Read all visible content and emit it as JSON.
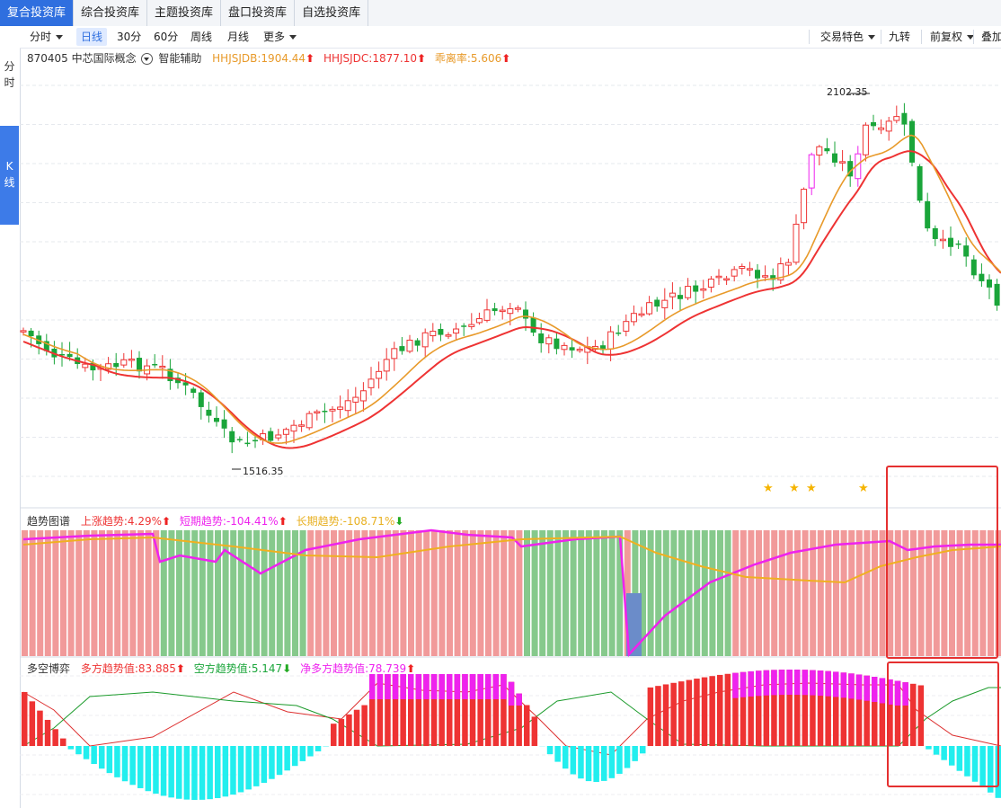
{
  "nav": {
    "tabs": [
      "复合投资库",
      "综合投资库",
      "主题投资库",
      "盘口投资库",
      "自选投资库"
    ]
  },
  "toolbar": {
    "fenshi": "分时",
    "rixian": "日线",
    "m30": "30分",
    "m60": "60分",
    "zhouxian": "周线",
    "yuexian": "月线",
    "more": "更多",
    "jiaoyi": "交易特色",
    "jiuzhuan": "九转",
    "fuquan": "前复权",
    "overlay": "叠加"
  },
  "sidebar": {
    "fenshi": "分时",
    "kxian": "K线"
  },
  "stock": {
    "code": "870405",
    "name": "中芯国际概念",
    "assist": "智能辅助",
    "ind1_label": "HHJSJDB:",
    "ind1_value": "1904.44",
    "ind2_label": "HHJSJDC:",
    "ind2_value": "1877.10",
    "ind3_label": "乖离率:",
    "ind3_value": "5.606",
    "max_label": "2102.35",
    "min_label": "1516.35"
  },
  "trend": {
    "title": "趋势图谱",
    "up_label": "上涨趋势:",
    "up_value": "4.29%",
    "short_label": "短期趋势:",
    "short_value": "-104.41%",
    "long_label": "长期趋势:",
    "long_value": "-108.71%"
  },
  "bull": {
    "title": "多空博弈",
    "long_label": "多方趋势值:",
    "long_value": "83.885",
    "short_label": "空方趋势值:",
    "short_value": "5.147",
    "net_label": "净多方趋势值:",
    "net_value": "78.739"
  },
  "colors": {
    "up": "#ee3333",
    "down": "#1aa53a",
    "ma1": "#ee3333",
    "ma2": "#e89a2a",
    "star": "#f5b400",
    "magenta": "#ee22ee",
    "cyan": "#22eeee",
    "pink_bg": "#f19a9a",
    "green_bg": "#86c98c",
    "highlight": "#e53030"
  },
  "chart_data": {
    "type": "candlestick",
    "price_max": 2102.35,
    "price_min": 1516.35,
    "indicators": {
      "HHJSJDB": 1904.44,
      "HHJSJDC": 1877.1,
      "乖离率": 5.606
    },
    "trend": {
      "上涨趋势": "4.29%",
      "短期趋势": "-104.41%",
      "长期趋势": "-108.71%"
    },
    "bull_bear": {
      "多方趋势值": 83.885,
      "空方趋势值": 5.147,
      "净多方趋势值": 78.739
    }
  }
}
